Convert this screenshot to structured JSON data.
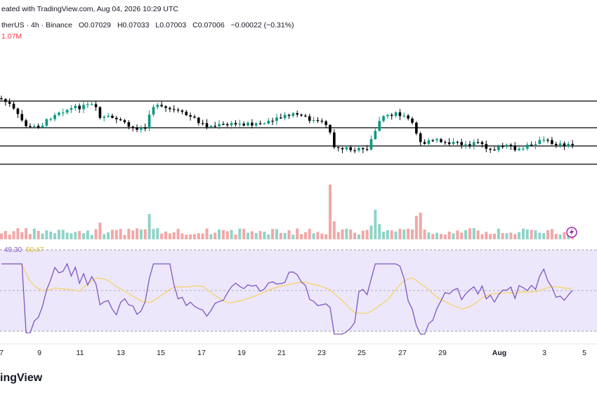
{
  "header": {
    "created": "eated with TradingView.com, Aug 04, 2026 10:29 UTC",
    "symbol_line": "therUS · 4h · Binance",
    "o": "O0.07029",
    "h": "H0.07033",
    "l": "L0.07003",
    "c": "C0.07006",
    "chg": "−0.00022 (−0.31%)",
    "vol": "1.07M"
  },
  "rsi_labels": {
    "rsi": "49.30",
    "ma": "50.47"
  },
  "x_labels": [
    "7",
    "9",
    "11",
    "13",
    "15",
    "17",
    "19",
    "21",
    "23",
    "25",
    "27",
    "29",
    "Aug",
    "3",
    "5"
  ],
  "logo": "ingView",
  "colors": {
    "up": "#089981",
    "down": "#000000",
    "vol_up": "#8fd3c8",
    "vol_down": "#f4a6a6",
    "rsi_line": "#7e57c2",
    "rsi_ma": "#f5d36b",
    "rsi_band": "#ede7fb",
    "header_red": "#f23645"
  },
  "chart_data": {
    "type": "candlestick",
    "interval": "4h",
    "price_levels_note": "four horizontal support/resistance lines",
    "candles_count": 140,
    "panes": [
      "price",
      "volume",
      "rsi"
    ]
  }
}
